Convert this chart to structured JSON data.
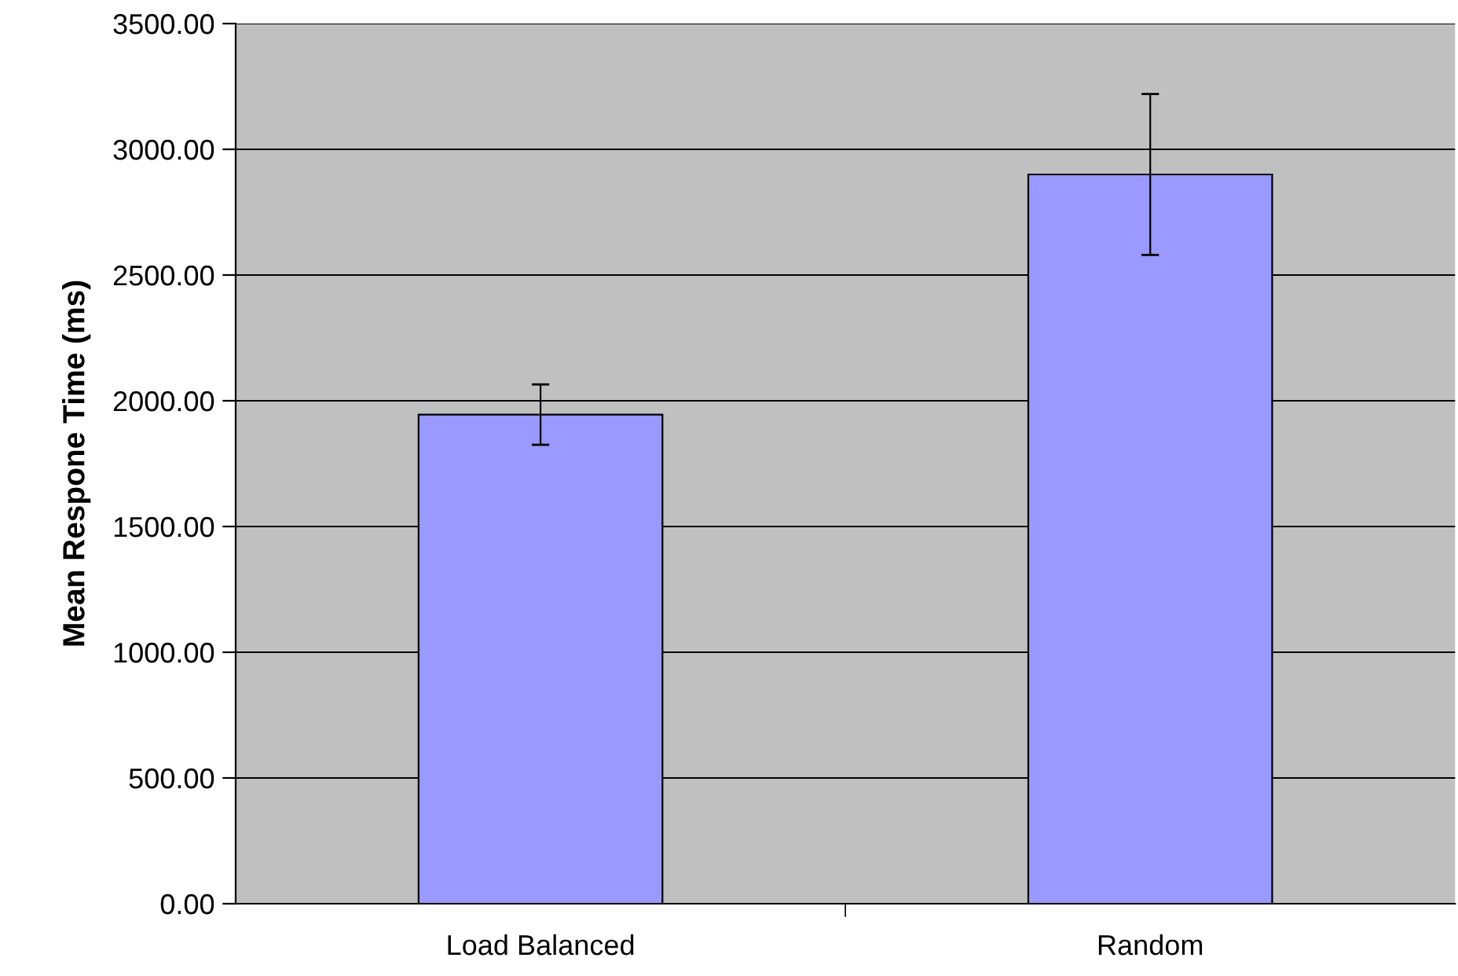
{
  "chart_data": {
    "type": "bar",
    "ylabel": "Mean Respone Time (ms)",
    "categories": [
      "Load Balanced",
      "Random"
    ],
    "series": [
      {
        "color": "#9999ff",
        "values": [
          1945,
          2900
        ],
        "errors": [
          120,
          320
        ]
      }
    ],
    "ylim": [
      0,
      3500
    ],
    "yticks": [
      {
        "value": 0,
        "label": "0.00"
      },
      {
        "value": 500,
        "label": "500.00"
      },
      {
        "value": 1000,
        "label": "1000.00"
      },
      {
        "value": 1500,
        "label": "1500.00"
      },
      {
        "value": 2000,
        "label": "2000.00"
      },
      {
        "value": 2500,
        "label": "2500.00"
      },
      {
        "value": 3000,
        "label": "3000.00"
      },
      {
        "value": 3500,
        "label": "3500.00"
      }
    ],
    "grid": "y",
    "legend": false
  }
}
